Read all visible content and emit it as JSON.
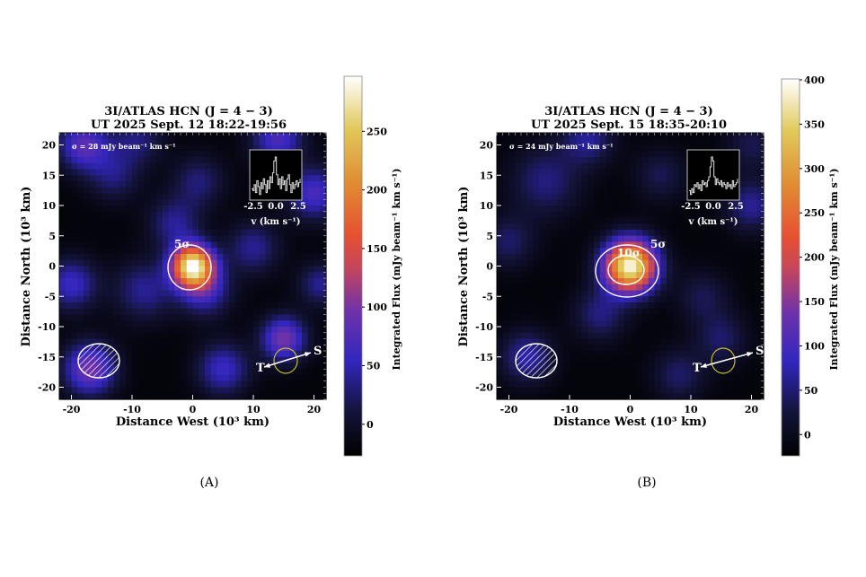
{
  "chart_data": [
    {
      "type": "heatmap",
      "panel_label": "(A)",
      "title": [
        "3I/ATLAS HCN (J = 4 − 3)",
        "UT 2025 Sept. 12 18:22-19:56"
      ],
      "xlabel": "Distance West (10³ km)",
      "ylabel": "Distance North (10³ km)",
      "xlim": [
        -22,
        22
      ],
      "ylim": [
        -22,
        22
      ],
      "xticks": [
        "-20",
        "-10",
        "0",
        "10",
        "20"
      ],
      "yticks": [
        "20",
        "15",
        "10",
        "5",
        "0",
        "-5",
        "-10",
        "-15",
        "-20"
      ],
      "noise_label": "σ = 28 mJy beam⁻¹ km s⁻¹",
      "colorbar": {
        "label": "Integrated Flux (mJy beam⁻¹ km s⁻¹)",
        "range": [
          -27,
          297
        ],
        "ticks": [
          "0",
          "50",
          "100",
          "150",
          "200",
          "250"
        ],
        "colormap": "CMRmap"
      },
      "background": -20,
      "emission_components": [
        {
          "x": 0,
          "y": 0,
          "amp": 300,
          "sigma": 2.4
        },
        {
          "x": 2,
          "y": -4,
          "amp": 80,
          "sigma": 3
        },
        {
          "x": -18,
          "y": 20,
          "amp": 100,
          "sigma": 3
        },
        {
          "x": 14,
          "y": 21,
          "amp": 90,
          "sigma": 3
        },
        {
          "x": -13,
          "y": 15,
          "amp": 50,
          "sigma": 3
        },
        {
          "x": -3,
          "y": 7,
          "amp": 60,
          "sigma": 3
        },
        {
          "x": 20,
          "y": 12,
          "amp": 90,
          "sigma": 3
        },
        {
          "x": 15,
          "y": -12,
          "amp": 120,
          "sigma": 2.6
        },
        {
          "x": -17,
          "y": -17,
          "amp": 120,
          "sigma": 3
        },
        {
          "x": 5,
          "y": -17,
          "amp": 80,
          "sigma": 3
        },
        {
          "x": -8,
          "y": -4,
          "amp": 60,
          "sigma": 3.5
        },
        {
          "x": -20,
          "y": -3,
          "amp": 80,
          "sigma": 3
        },
        {
          "x": 10,
          "y": 3,
          "amp": 60,
          "sigma": 3
        },
        {
          "x": 1,
          "y": 14,
          "amp": 50,
          "sigma": 3
        },
        {
          "x": -9,
          "y": 21,
          "amp": 50,
          "sigma": 3
        },
        {
          "x": 21,
          "y": -3,
          "amp": 60,
          "sigma": 2.5
        }
      ],
      "contours": [
        {
          "label": "5σ",
          "level": 140
        }
      ],
      "inset": {
        "xlabel": "v (km s⁻¹)",
        "xticks": [
          "-2.5",
          "0.0",
          "2.5"
        ],
        "spectrum": [
          0.2,
          0.15,
          0.3,
          0.1,
          0.4,
          0.25,
          0.05,
          0.35,
          0.2,
          0.45,
          0.3,
          0.1,
          0.4,
          0.2,
          0.5,
          0.35,
          0.6,
          0.9,
          1.0,
          0.55,
          0.3,
          0.45,
          0.2,
          0.5,
          0.3,
          0.4,
          0.15,
          0.45,
          0.55,
          0.3,
          0.1,
          0.35,
          0.2,
          0.3,
          0.4,
          0.25,
          0.35,
          0.45
        ]
      },
      "beam": "hatched ellipse",
      "markers": {
        "T": "T",
        "S": "S"
      }
    },
    {
      "type": "heatmap",
      "panel_label": "(B)",
      "title": [
        "3I/ATLAS HCN (J = 4 − 3)",
        "UT 2025 Sept. 15 18:35-20:10"
      ],
      "xlabel": "Distance West (10³ km)",
      "ylabel": "Distance North (10³ km)",
      "xlim": [
        -22,
        22
      ],
      "ylim": [
        -22,
        22
      ],
      "xticks": [
        "-20",
        "-10",
        "0",
        "10",
        "20"
      ],
      "yticks": [
        "20",
        "15",
        "10",
        "5",
        "0",
        "-5",
        "-10",
        "-15",
        "-20"
      ],
      "noise_label": "σ = 24 mJy beam⁻¹ km s⁻¹",
      "colorbar": {
        "label": "Integrated Flux (mJy beam⁻¹ km s⁻¹)",
        "range": [
          -24,
          401
        ],
        "ticks": [
          "0",
          "50",
          "100",
          "150",
          "200",
          "250",
          "300",
          "350",
          "400"
        ],
        "colormap": "CMRmap"
      },
      "background": -15,
      "emission_components": [
        {
          "x": 0,
          "y": 0,
          "amp": 410,
          "sigma": 3
        },
        {
          "x": -14,
          "y": 14,
          "amp": 70,
          "sigma": 4
        },
        {
          "x": -7,
          "y": 21,
          "amp": 80,
          "sigma": 3
        },
        {
          "x": 15,
          "y": -12,
          "amp": 60,
          "sigma": 3
        },
        {
          "x": -17,
          "y": -15,
          "amp": 90,
          "sigma": 3
        },
        {
          "x": 12,
          "y": -5,
          "amp": 50,
          "sigma": 3
        },
        {
          "x": 20,
          "y": 10,
          "amp": 80,
          "sigma": 3
        },
        {
          "x": -5,
          "y": -8,
          "amp": 70,
          "sigma": 3
        },
        {
          "x": 5,
          "y": 15,
          "amp": 50,
          "sigma": 3
        },
        {
          "x": -20,
          "y": 4,
          "amp": 60,
          "sigma": 3
        },
        {
          "x": 8,
          "y": -18,
          "amp": 60,
          "sigma": 3
        },
        {
          "x": 20,
          "y": 20,
          "amp": 50,
          "sigma": 3
        }
      ],
      "contours": [
        {
          "label": "5σ",
          "level": 120
        },
        {
          "label": "10σ",
          "level": 240
        }
      ],
      "inset": {
        "xlabel": "v (km s⁻¹)",
        "xticks": [
          "-2.5",
          "0.0",
          "2.5"
        ],
        "spectrum": [
          0.15,
          0.05,
          0.2,
          0.1,
          0.3,
          0.25,
          0.35,
          0.2,
          0.3,
          0.15,
          0.4,
          0.3,
          0.35,
          0.25,
          0.4,
          0.5,
          0.75,
          1.0,
          0.9,
          0.5,
          0.3,
          0.45,
          0.35,
          0.3,
          0.4,
          0.25,
          0.35,
          0.3,
          0.2,
          0.35,
          0.25,
          0.3,
          0.2,
          0.4,
          0.25,
          0.3,
          0.35,
          0.45
        ]
      },
      "beam": "hatched ellipse",
      "markers": {
        "T": "T",
        "S": "S"
      }
    }
  ],
  "colors": {
    "contour": "#ffffff",
    "nucleus_circle": "#c8c020",
    "arrow": "#ffffff"
  }
}
